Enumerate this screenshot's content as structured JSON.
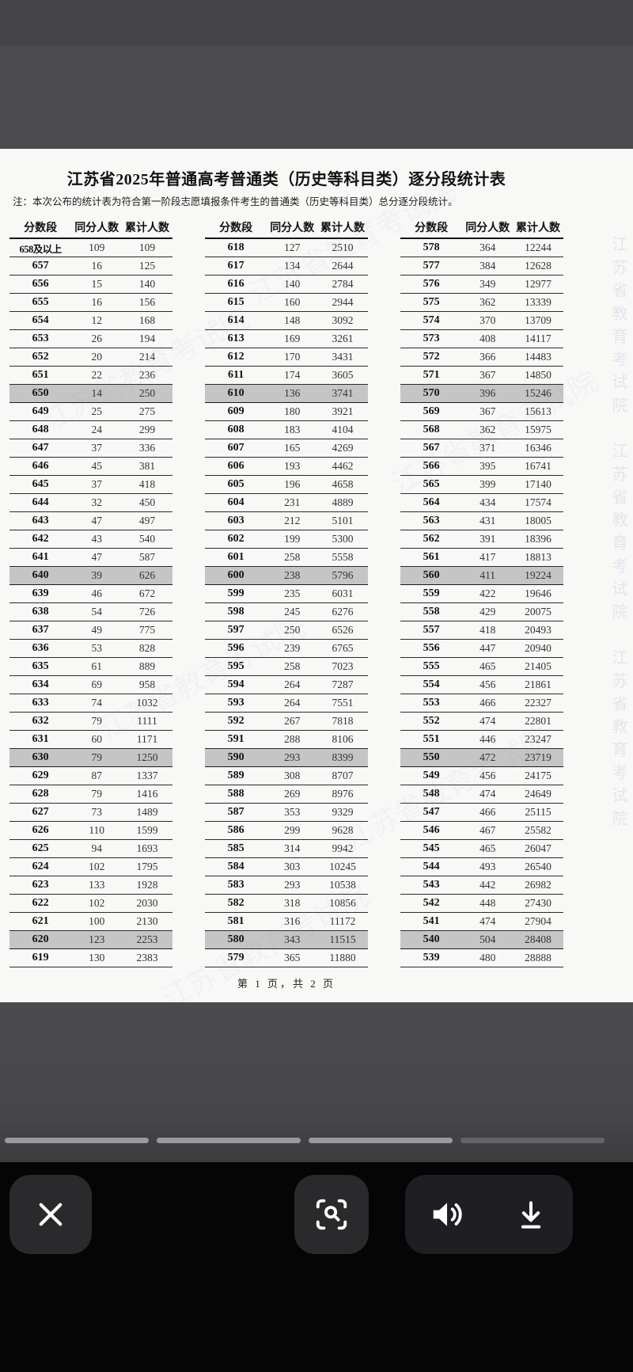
{
  "document": {
    "title": "江苏省2025年普通高考普通类（历史等科目类）逐分段统计表",
    "note": "注：本次公布的统计表为符合第一阶段志愿填报条件考生的普通类（历史等科目类）总分逐分段统计。",
    "page_footer": "第 1 页，共 2 页",
    "watermark": "江苏省教育考试院",
    "table": {
      "headers": [
        "分数段",
        "同分人数",
        "累计人数"
      ],
      "highlight_color": "#c5c5c5",
      "columns": [
        {
          "rows": [
            [
              "658及以上",
              109,
              109
            ],
            [
              "657",
              16,
              125
            ],
            [
              "656",
              15,
              140
            ],
            [
              "655",
              16,
              156
            ],
            [
              "654",
              12,
              168
            ],
            [
              "653",
              26,
              194
            ],
            [
              "652",
              20,
              214
            ],
            [
              "651",
              22,
              236
            ],
            [
              "650",
              14,
              250
            ],
            [
              "649",
              25,
              275
            ],
            [
              "648",
              24,
              299
            ],
            [
              "647",
              37,
              336
            ],
            [
              "646",
              45,
              381
            ],
            [
              "645",
              37,
              418
            ],
            [
              "644",
              32,
              450
            ],
            [
              "643",
              47,
              497
            ],
            [
              "642",
              43,
              540
            ],
            [
              "641",
              47,
              587
            ],
            [
              "640",
              39,
              626
            ],
            [
              "639",
              46,
              672
            ],
            [
              "638",
              54,
              726
            ],
            [
              "637",
              49,
              775
            ],
            [
              "636",
              53,
              828
            ],
            [
              "635",
              61,
              889
            ],
            [
              "634",
              69,
              958
            ],
            [
              "633",
              74,
              1032
            ],
            [
              "632",
              79,
              1111
            ],
            [
              "631",
              60,
              1171
            ],
            [
              "630",
              79,
              1250
            ],
            [
              "629",
              87,
              1337
            ],
            [
              "628",
              79,
              1416
            ],
            [
              "627",
              73,
              1489
            ],
            [
              "626",
              110,
              1599
            ],
            [
              "625",
              94,
              1693
            ],
            [
              "624",
              102,
              1795
            ],
            [
              "623",
              133,
              1928
            ],
            [
              "622",
              102,
              2030
            ],
            [
              "621",
              100,
              2130
            ],
            [
              "620",
              123,
              2253
            ],
            [
              "619",
              130,
              2383
            ]
          ]
        },
        {
          "rows": [
            [
              "618",
              127,
              2510
            ],
            [
              "617",
              134,
              2644
            ],
            [
              "616",
              140,
              2784
            ],
            [
              "615",
              160,
              2944
            ],
            [
              "614",
              148,
              3092
            ],
            [
              "613",
              169,
              3261
            ],
            [
              "612",
              170,
              3431
            ],
            [
              "611",
              174,
              3605
            ],
            [
              "610",
              136,
              3741
            ],
            [
              "609",
              180,
              3921
            ],
            [
              "608",
              183,
              4104
            ],
            [
              "607",
              165,
              4269
            ],
            [
              "606",
              193,
              4462
            ],
            [
              "605",
              196,
              4658
            ],
            [
              "604",
              231,
              4889
            ],
            [
              "603",
              212,
              5101
            ],
            [
              "602",
              199,
              5300
            ],
            [
              "601",
              258,
              5558
            ],
            [
              "600",
              238,
              5796
            ],
            [
              "599",
              235,
              6031
            ],
            [
              "598",
              245,
              6276
            ],
            [
              "597",
              250,
              6526
            ],
            [
              "596",
              239,
              6765
            ],
            [
              "595",
              258,
              7023
            ],
            [
              "594",
              264,
              7287
            ],
            [
              "593",
              264,
              7551
            ],
            [
              "592",
              267,
              7818
            ],
            [
              "591",
              288,
              8106
            ],
            [
              "590",
              293,
              8399
            ],
            [
              "589",
              308,
              8707
            ],
            [
              "588",
              269,
              8976
            ],
            [
              "587",
              353,
              9329
            ],
            [
              "586",
              299,
              9628
            ],
            [
              "585",
              314,
              9942
            ],
            [
              "584",
              303,
              10245
            ],
            [
              "583",
              293,
              10538
            ],
            [
              "582",
              318,
              10856
            ],
            [
              "581",
              316,
              11172
            ],
            [
              "580",
              343,
              11515
            ],
            [
              "579",
              365,
              11880
            ]
          ]
        },
        {
          "rows": [
            [
              "578",
              364,
              12244
            ],
            [
              "577",
              384,
              12628
            ],
            [
              "576",
              349,
              12977
            ],
            [
              "575",
              362,
              13339
            ],
            [
              "574",
              370,
              13709
            ],
            [
              "573",
              408,
              14117
            ],
            [
              "572",
              366,
              14483
            ],
            [
              "571",
              367,
              14850
            ],
            [
              "570",
              396,
              15246
            ],
            [
              "569",
              367,
              15613
            ],
            [
              "568",
              362,
              15975
            ],
            [
              "567",
              371,
              16346
            ],
            [
              "566",
              395,
              16741
            ],
            [
              "565",
              399,
              17140
            ],
            [
              "564",
              434,
              17574
            ],
            [
              "563",
              431,
              18005
            ],
            [
              "562",
              391,
              18396
            ],
            [
              "561",
              417,
              18813
            ],
            [
              "560",
              411,
              19224
            ],
            [
              "559",
              422,
              19646
            ],
            [
              "558",
              429,
              20075
            ],
            [
              "557",
              418,
              20493
            ],
            [
              "556",
              447,
              20940
            ],
            [
              "555",
              465,
              21405
            ],
            [
              "554",
              456,
              21861
            ],
            [
              "553",
              466,
              22327
            ],
            [
              "552",
              474,
              22801
            ],
            [
              "551",
              446,
              23247
            ],
            [
              "550",
              472,
              23719
            ],
            [
              "549",
              456,
              24175
            ],
            [
              "548",
              474,
              24649
            ],
            [
              "547",
              466,
              25115
            ],
            [
              "546",
              467,
              25582
            ],
            [
              "545",
              465,
              26047
            ],
            [
              "544",
              493,
              26540
            ],
            [
              "543",
              442,
              26982
            ],
            [
              "542",
              448,
              27430
            ],
            [
              "541",
              474,
              27904
            ],
            [
              "540",
              504,
              28408
            ],
            [
              "539",
              480,
              28888
            ]
          ]
        }
      ]
    }
  },
  "progress": {
    "total": 4,
    "filled": 3,
    "active_color": "#9a9a9c",
    "inactive_color": "#656568"
  },
  "toolbar": {
    "buttons": [
      {
        "icon": "close"
      },
      {
        "icon": "scan-search"
      },
      {
        "icon": "volume"
      },
      {
        "icon": "download"
      }
    ]
  }
}
